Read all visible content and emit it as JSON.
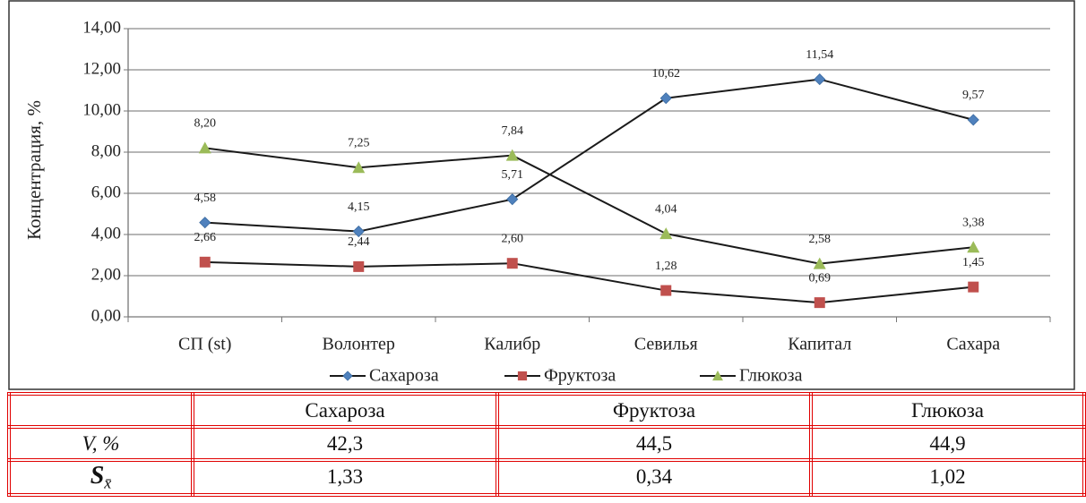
{
  "chart_data": {
    "type": "line",
    "y_label": "Концентрация, %",
    "categories": [
      "СП (st)",
      "Волонтер",
      "Калибр",
      "Севилья",
      "Капитал",
      "Сахара"
    ],
    "series": [
      {
        "name": "Сахароза",
        "color": "#4f81bd",
        "marker": "diamond",
        "values": [
          4.58,
          4.15,
          5.71,
          10.62,
          11.54,
          9.57
        ],
        "value_labels": [
          "4,58",
          "4,15",
          "5,71",
          "10,62",
          "11,54",
          "9,57"
        ]
      },
      {
        "name": "Фруктоза",
        "color": "#c0504d",
        "marker": "square",
        "values": [
          2.66,
          2.44,
          2.6,
          1.28,
          0.69,
          1.45
        ],
        "value_labels": [
          "2,66",
          "2,44",
          "2,60",
          "1,28",
          "0,69",
          "1,45"
        ]
      },
      {
        "name": "Глюкоза",
        "color": "#9bbb59",
        "marker": "triangle",
        "values": [
          8.2,
          7.25,
          7.84,
          4.04,
          2.58,
          3.38
        ],
        "value_labels": [
          "8,20",
          "7,25",
          "7,84",
          "4,04",
          "2,58",
          "3,38"
        ]
      }
    ],
    "line_color": "#1a1a1a",
    "ylim": [
      0,
      14
    ],
    "yticks": [
      {
        "value": 0,
        "label": "0,00"
      },
      {
        "value": 2,
        "label": "2,00"
      },
      {
        "value": 4,
        "label": "4,00"
      },
      {
        "value": 6,
        "label": "6,00"
      },
      {
        "value": 8,
        "label": "8,00"
      },
      {
        "value": 10,
        "label": "10,00"
      },
      {
        "value": 12,
        "label": "12,00"
      },
      {
        "value": 14,
        "label": "14,00"
      }
    ],
    "grid": true,
    "legend": "bottom"
  },
  "table": {
    "header": [
      "Сахароза",
      "Фруктоза",
      "Глюкоза"
    ],
    "rows": [
      {
        "label": "V, %",
        "values": [
          "42,3",
          "44,5",
          "44,9"
        ]
      },
      {
        "label": "S",
        "label_sub": "x̄",
        "values": [
          "1,33",
          "0,34",
          "1,02"
        ]
      }
    ]
  }
}
